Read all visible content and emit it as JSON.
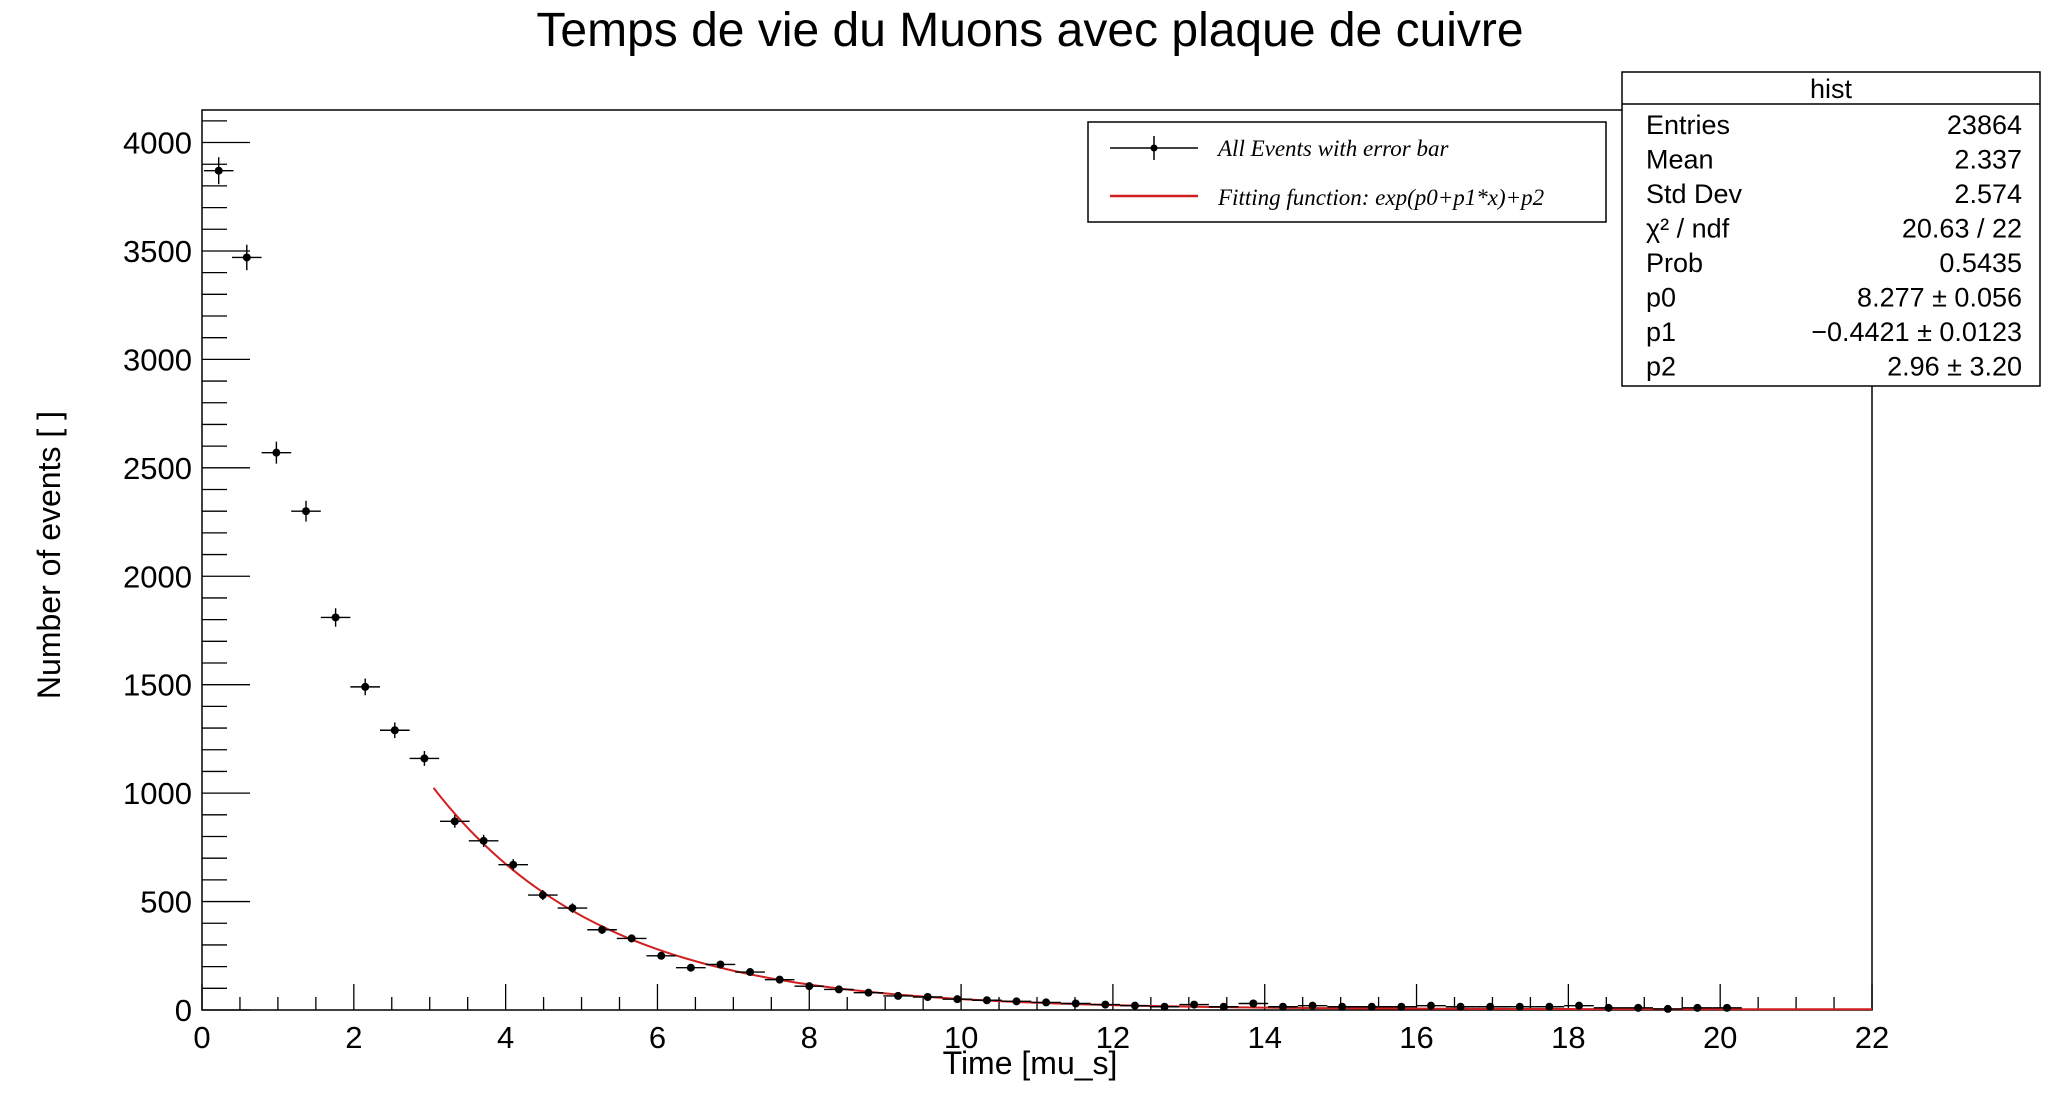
{
  "chart_data": {
    "type": "scatter",
    "title": "Temps de vie du Muons avec plaque de cuivre",
    "xlabel": "Time [mu_s]",
    "ylabel": "Number of events [ ]",
    "xlim": [
      0,
      22
    ],
    "ylim": [
      0,
      4150
    ],
    "x_ticks": [
      "0",
      "2",
      "4",
      "6",
      "8",
      "10",
      "12",
      "14",
      "16",
      "18",
      "20",
      "22"
    ],
    "y_ticks": [
      "0",
      "500",
      "1000",
      "1500",
      "2000",
      "2500",
      "3000",
      "3500",
      "4000"
    ],
    "grid": false,
    "bin_width": 0.39,
    "series": [
      {
        "name": "All Events with error bar",
        "style": "points-with-error-bars",
        "color": "#000000",
        "x": [
          0.22,
          0.59,
          0.98,
          1.37,
          1.76,
          2.15,
          2.54,
          2.93,
          3.33,
          3.71,
          4.1,
          4.49,
          4.88,
          5.27,
          5.66,
          6.05,
          6.44,
          6.83,
          7.22,
          7.61,
          8.0,
          8.39,
          8.78,
          9.17,
          9.56,
          9.95,
          10.34,
          10.73,
          11.12,
          11.51,
          11.9,
          12.29,
          12.68,
          13.07,
          13.46,
          13.85,
          14.24,
          14.63,
          15.02,
          15.41,
          15.8,
          16.19,
          16.58,
          16.97,
          17.36,
          17.75,
          18.14,
          18.53,
          18.92,
          19.31,
          19.7,
          20.09
        ],
        "y": [
          3870,
          3470,
          2570,
          2300,
          1810,
          1490,
          1290,
          1160,
          870,
          780,
          670,
          530,
          470,
          370,
          330,
          250,
          195,
          210,
          175,
          140,
          110,
          95,
          80,
          65,
          60,
          50,
          45,
          40,
          35,
          30,
          25,
          20,
          15,
          25,
          15,
          30,
          15,
          20,
          15,
          15,
          15,
          20,
          15,
          15,
          15,
          15,
          20,
          10,
          10,
          5,
          10,
          10
        ]
      },
      {
        "name": "Fitting function:  exp(p0+p1*x)+p2",
        "style": "line",
        "color": "#d11f1f",
        "function": "exp(p0+p1*x)+p2",
        "params": {
          "p0": 8.277,
          "p1": -0.4421,
          "p2": 2.96
        },
        "range": [
          3.05,
          22
        ]
      }
    ],
    "legend": {
      "placement": "top-right",
      "entries": [
        "All Events with error bar",
        "Fitting function:  exp(p0+p1*x)+p2"
      ]
    },
    "stats": {
      "title": "hist",
      "rows": [
        {
          "label": "Entries",
          "value": "23864"
        },
        {
          "label": "Mean",
          "value": "2.337"
        },
        {
          "label": "Std Dev",
          "value": "2.574"
        },
        {
          "label": "χ² / ndf",
          "value": "20.63 / 22"
        },
        {
          "label": "Prob",
          "value": "0.5435"
        },
        {
          "label": "p0",
          "value": "8.277 ± 0.056"
        },
        {
          "label": "p1",
          "value": "−0.4421 ± 0.0123"
        },
        {
          "label": "p2",
          "value": "2.96 ± 3.20"
        }
      ]
    }
  }
}
